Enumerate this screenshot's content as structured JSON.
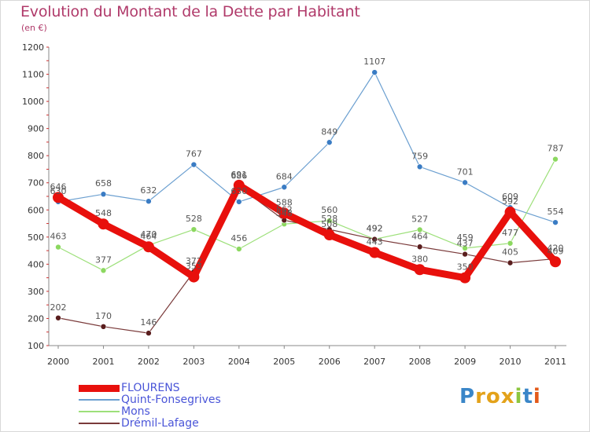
{
  "title": "Evolution du Montant de la Dette par Habitant",
  "unit": "(en €)",
  "brand": {
    "letters": [
      "P",
      "r",
      "o",
      "x",
      "i",
      "t",
      "i"
    ],
    "colors": [
      "#3a86c8",
      "#e3a21a",
      "#e3a21a",
      "#e3a21a",
      "#8cc63f",
      "#3a86c8",
      "#e35a1a"
    ]
  },
  "chart_data": {
    "type": "line",
    "title": "Evolution du Montant de la Dette par Habitant",
    "subtitle": "(en €)",
    "xlabel": "",
    "ylabel": "",
    "categories": [
      "2000",
      "2001",
      "2002",
      "2003",
      "2004",
      "2005",
      "2006",
      "2007",
      "2008",
      "2009",
      "2010",
      "2011"
    ],
    "ylim": [
      100,
      1200
    ],
    "yticks": [
      100,
      200,
      300,
      400,
      500,
      600,
      700,
      800,
      900,
      1000,
      1100,
      1200
    ],
    "grid": false,
    "legend_position": "bottom-left",
    "series": [
      {
        "name": "Quint-Fonsegrives",
        "color": "#6b9fd0",
        "marker": "#3a7cc4",
        "width": 1.2,
        "values": [
          630,
          658,
          632,
          767,
          630,
          684,
          849,
          1107,
          759,
          701,
          609,
          554
        ]
      },
      {
        "name": "Mons",
        "color": "#9de07a",
        "marker": "#8cd860",
        "width": 1.2,
        "values": [
          463,
          377,
          470,
          528,
          456,
          548,
          560,
          492,
          527,
          459,
          477,
          787
        ]
      },
      {
        "name": "Drémil-Lafage",
        "color": "#7a3a3a",
        "marker": "#5a1e1e",
        "width": 1.2,
        "values": [
          202,
          170,
          146,
          372,
          686,
          562,
          528,
          492,
          464,
          437,
          405,
          420
        ]
      },
      {
        "name": "FLOURENS",
        "color": "#e8100c",
        "marker": "#e8100c",
        "width": 9,
        "values": [
          646,
          548,
          464,
          353,
          691,
          588,
          508,
          443,
          380,
          350,
          592,
          409
        ]
      }
    ]
  }
}
